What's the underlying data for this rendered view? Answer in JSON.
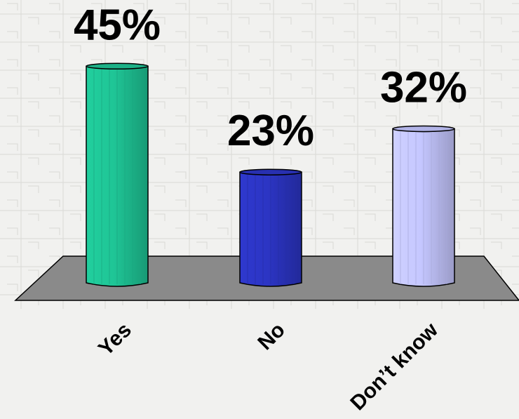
{
  "chart_data": {
    "type": "bar",
    "categories": [
      "Yes",
      "No",
      "Don’t know"
    ],
    "values": [
      45,
      23,
      32
    ],
    "value_labels": [
      "45%",
      "23%",
      "32%"
    ],
    "ylim": [
      0,
      50
    ],
    "colors": [
      "#1fc596",
      "#2c35c4",
      "#c5c7ff"
    ],
    "floor_color": "#8a8a8a",
    "grid": false,
    "legend": "none"
  }
}
